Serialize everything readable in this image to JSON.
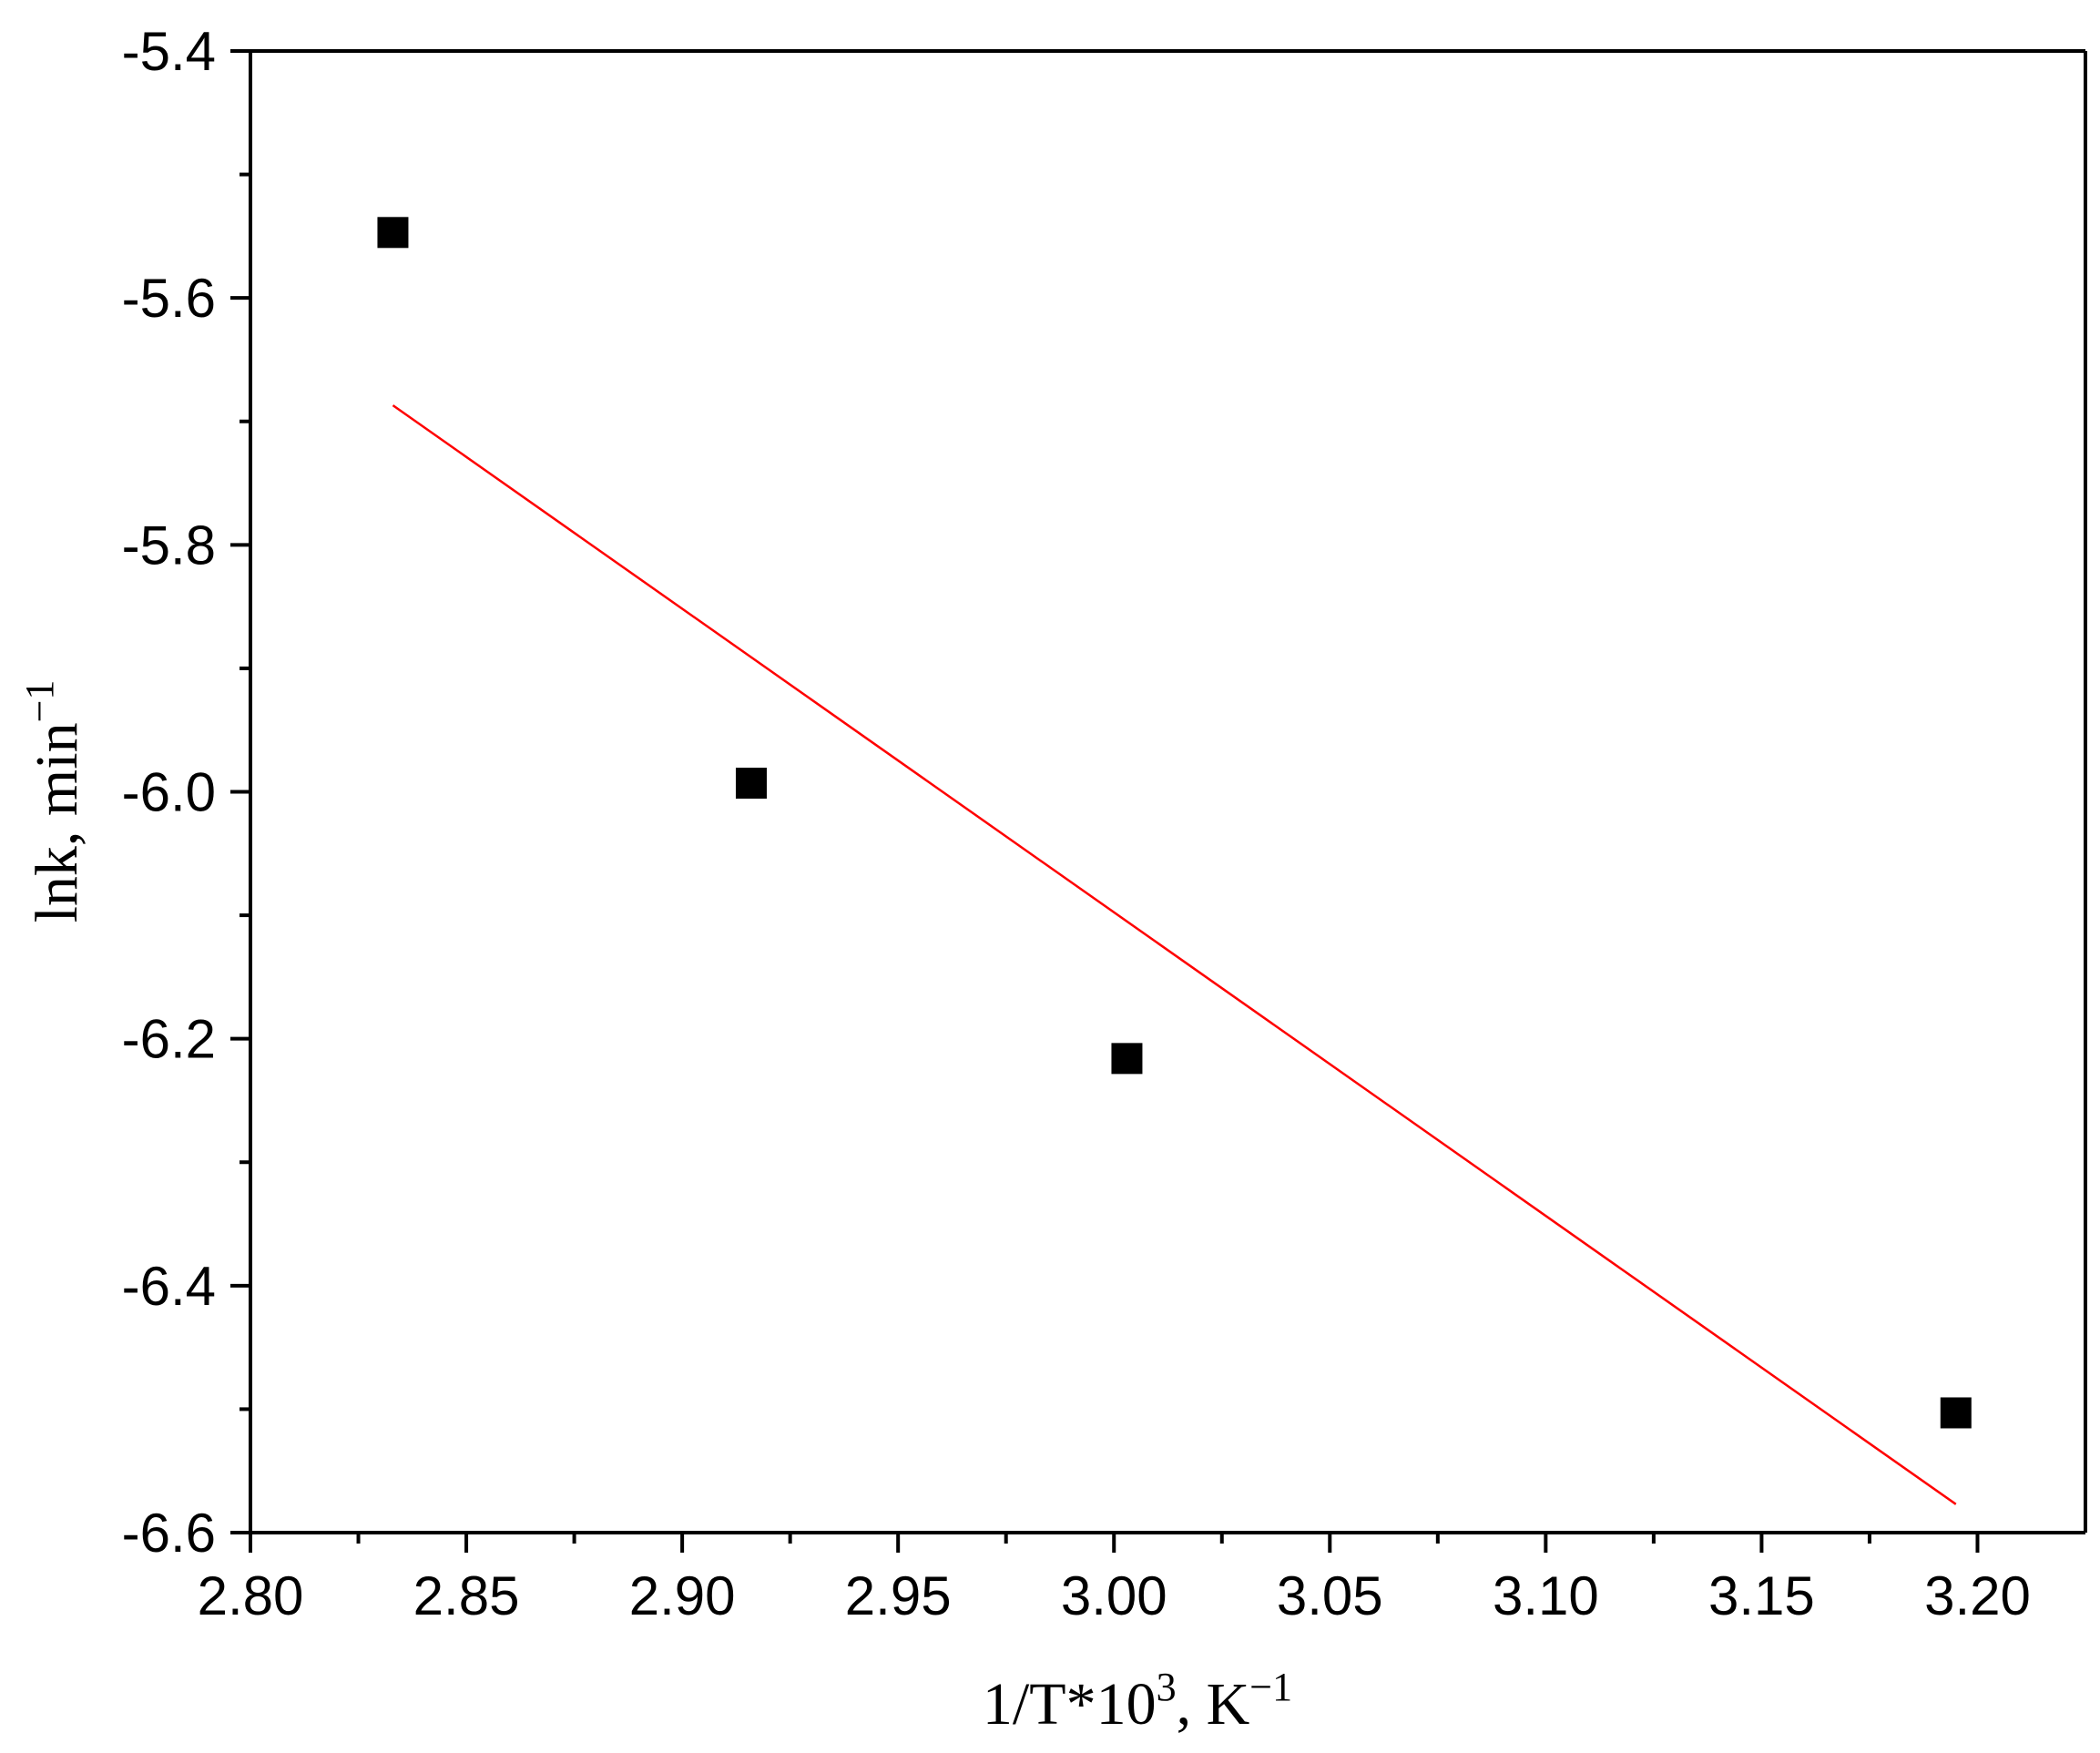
{
  "chart_data": {
    "type": "scatter",
    "xlabel": "1/T*10",
    "xlabel_superscript": "3",
    "xlabel_suffix": ", K",
    "xlabel_suffix_superscript": "−1",
    "ylabel": "lnk, min",
    "ylabel_superscript": "−1",
    "xlim": [
      2.8,
      3.225
    ],
    "ylim": [
      -6.6,
      -5.4
    ],
    "x_ticks": [
      "2.80",
      "2.85",
      "2.90",
      "2.95",
      "3.00",
      "3.05",
      "3.10",
      "3.15",
      "3.20"
    ],
    "y_ticks": [
      "-5.4",
      "-5.6",
      "-5.8",
      "-6.0",
      "-6.2",
      "-6.4",
      "-6.6"
    ],
    "grid": false,
    "series": [
      {
        "type": "scatter",
        "marker": "square",
        "color": "#000000",
        "x": [
          2.833,
          2.916,
          3.003,
          3.195
        ],
        "y": [
          -5.547,
          -5.993,
          -6.216,
          -6.503
        ]
      },
      {
        "type": "line",
        "color": "#ff0000",
        "x": [
          2.833,
          3.195
        ],
        "y": [
          -5.687,
          -6.577
        ]
      }
    ]
  }
}
